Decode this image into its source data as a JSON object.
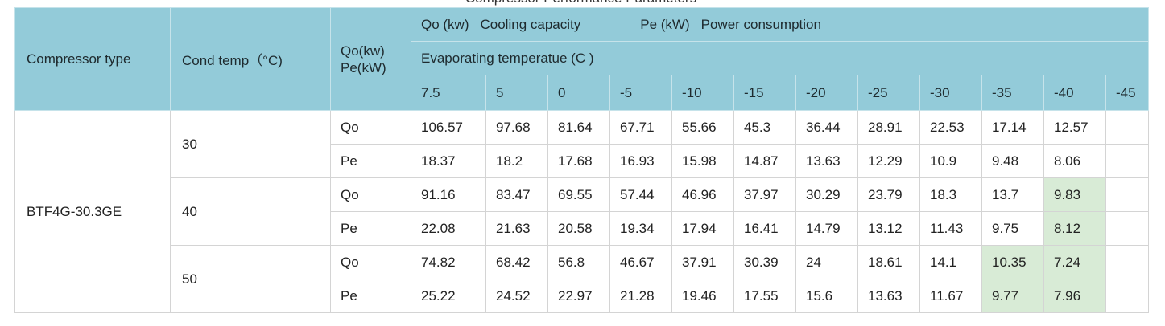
{
  "caption": "Compressor Performance Parameters",
  "header": {
    "compressor_type": "Compressor type",
    "cond_temp": "Cond temp（°C)",
    "qo_unit": "Qo(kw)",
    "pe_unit": "Pe(kW)",
    "legend_qo_code": "Qo (kw)",
    "legend_qo_text": "Cooling capacity",
    "legend_pe_code": "Pe (kW)",
    "legend_pe_text": "Power consumption",
    "evap_title": "Evaporating temperatue (C )",
    "evap_temps": [
      "7.5",
      "5",
      "0",
      "-5",
      "-10",
      "-15",
      "-20",
      "-25",
      "-30",
      "-35",
      "-40",
      "-45"
    ]
  },
  "table": {
    "compressor": "BTF4G-30.3GE",
    "groups": [
      {
        "cond_temp": "30",
        "rows": [
          {
            "param": "Qo",
            "values": [
              "106.57",
              "97.68",
              "81.64",
              "67.71",
              "55.66",
              "45.3",
              "36.44",
              "28.91",
              "22.53",
              "17.14",
              "12.57",
              ""
            ]
          },
          {
            "param": "Pe",
            "values": [
              "18.37",
              "18.2",
              "17.68",
              "16.93",
              "15.98",
              "14.87",
              "13.63",
              "12.29",
              "10.9",
              "9.48",
              "8.06",
              ""
            ]
          }
        ]
      },
      {
        "cond_temp": "40",
        "rows": [
          {
            "param": "Qo",
            "values": [
              "91.16",
              "83.47",
              "69.55",
              "57.44",
              "46.96",
              "37.97",
              "30.29",
              "23.79",
              "18.3",
              "13.7",
              "9.83",
              ""
            ]
          },
          {
            "param": "Pe",
            "values": [
              "22.08",
              "21.63",
              "20.58",
              "19.34",
              "17.94",
              "16.41",
              "14.79",
              "13.12",
              "11.43",
              "9.75",
              "8.12",
              ""
            ]
          }
        ]
      },
      {
        "cond_temp": "50",
        "rows": [
          {
            "param": "Qo",
            "values": [
              "74.82",
              "68.42",
              "56.8",
              "46.67",
              "37.91",
              "30.39",
              "24",
              "18.61",
              "14.1",
              "10.35",
              "7.24",
              ""
            ]
          },
          {
            "param": "Pe",
            "values": [
              "25.22",
              "24.52",
              "22.97",
              "21.28",
              "19.46",
              "17.55",
              "15.6",
              "13.63",
              "11.67",
              "9.77",
              "7.96",
              ""
            ]
          }
        ]
      }
    ]
  },
  "colors": {
    "header_bg": "#93cbd9",
    "highlight_bg": "#d8ebd6"
  }
}
